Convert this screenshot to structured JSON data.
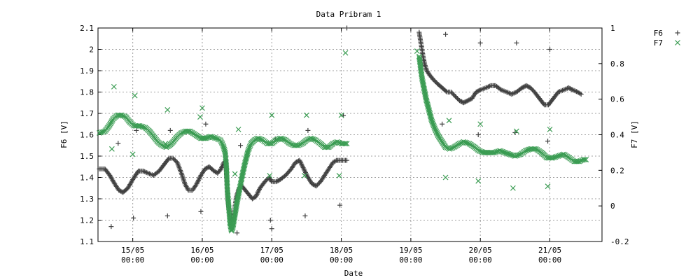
{
  "chart_data": {
    "type": "scatter",
    "title": "Data Pribram 1",
    "xlabel": "Date",
    "ylabel_left": "F6 [V]",
    "ylabel_right": "F7 [V]",
    "x_unit": "days",
    "xlim": [
      14.5,
      21.75
    ],
    "ylim_left": [
      1.1,
      2.1
    ],
    "ylim_right": [
      -0.2,
      1.0
    ],
    "grid": true,
    "legend_position": "top-right outside",
    "x_ticks": [
      {
        "x": 15,
        "line1": "15/05",
        "line2": "00:00"
      },
      {
        "x": 16,
        "line1": "16/05",
        "line2": "00:00"
      },
      {
        "x": 17,
        "line1": "17/05",
        "line2": "00:00"
      },
      {
        "x": 18,
        "line1": "18/05",
        "line2": "00:00"
      },
      {
        "x": 19,
        "line1": "19/05",
        "line2": "00:00"
      },
      {
        "x": 20,
        "line1": "20/05",
        "line2": "00:00"
      },
      {
        "x": 21,
        "line1": "21/05",
        "line2": "00:00"
      }
    ],
    "y_ticks_left": [
      "1.1",
      "1.2",
      "1.3",
      "1.4",
      "1.5",
      "1.6",
      "1.7",
      "1.8",
      "1.9",
      "2",
      "2.1"
    ],
    "y_ticks_right": [
      "-0.2",
      "0",
      "0.2",
      "0.4",
      "0.6",
      "0.8",
      "1"
    ],
    "series": [
      {
        "name": "F6",
        "axis": "left",
        "color": "#404040",
        "marker": "plus",
        "trace": [
          [
            14.52,
            1.44
          ],
          [
            14.6,
            1.44
          ],
          [
            14.67,
            1.41
          ],
          [
            14.74,
            1.37
          ],
          [
            14.8,
            1.34
          ],
          [
            14.86,
            1.33
          ],
          [
            14.93,
            1.35
          ],
          [
            15.0,
            1.39
          ],
          [
            15.08,
            1.43
          ],
          [
            15.15,
            1.43
          ],
          [
            15.22,
            1.42
          ],
          [
            15.3,
            1.41
          ],
          [
            15.38,
            1.43
          ],
          [
            15.45,
            1.46
          ],
          [
            15.52,
            1.49
          ],
          [
            15.58,
            1.49
          ],
          [
            15.64,
            1.47
          ],
          [
            15.7,
            1.42
          ],
          [
            15.75,
            1.37
          ],
          [
            15.8,
            1.34
          ],
          [
            15.86,
            1.34
          ],
          [
            15.92,
            1.37
          ],
          [
            15.98,
            1.41
          ],
          [
            16.04,
            1.44
          ],
          [
            16.1,
            1.45
          ],
          [
            16.17,
            1.43
          ],
          [
            16.22,
            1.42
          ],
          [
            16.27,
            1.44
          ],
          [
            16.31,
            1.47
          ],
          [
            16.34,
            1.48
          ],
          [
            16.35,
            1.4
          ],
          [
            16.36,
            1.32
          ],
          [
            16.38,
            1.26
          ],
          [
            16.4,
            1.21
          ],
          [
            16.42,
            1.18
          ],
          [
            16.44,
            1.2
          ],
          [
            16.46,
            1.24
          ],
          [
            16.49,
            1.31
          ],
          [
            16.53,
            1.35
          ],
          [
            16.57,
            1.36
          ],
          [
            16.62,
            1.34
          ],
          [
            16.67,
            1.32
          ],
          [
            16.72,
            1.3
          ],
          [
            16.77,
            1.31
          ],
          [
            16.83,
            1.35
          ],
          [
            16.9,
            1.38
          ],
          [
            16.96,
            1.4
          ],
          [
            17.0,
            1.38
          ],
          [
            17.06,
            1.38
          ],
          [
            17.12,
            1.39
          ],
          [
            17.2,
            1.41
          ],
          [
            17.28,
            1.44
          ],
          [
            17.34,
            1.47
          ],
          [
            17.4,
            1.48
          ],
          [
            17.46,
            1.44
          ],
          [
            17.52,
            1.4
          ],
          [
            17.58,
            1.37
          ],
          [
            17.64,
            1.36
          ],
          [
            17.7,
            1.38
          ],
          [
            17.76,
            1.41
          ],
          [
            17.82,
            1.44
          ],
          [
            17.88,
            1.47
          ],
          [
            17.93,
            1.48
          ],
          [
            18.0,
            1.48
          ],
          [
            18.08,
            1.48
          ],
          [
            19.12,
            2.08
          ],
          [
            19.14,
            2.04
          ],
          [
            19.16,
            2.0
          ],
          [
            19.18,
            1.96
          ],
          [
            19.2,
            1.93
          ],
          [
            19.23,
            1.9
          ],
          [
            19.27,
            1.88
          ],
          [
            19.32,
            1.86
          ],
          [
            19.38,
            1.84
          ],
          [
            19.45,
            1.82
          ],
          [
            19.52,
            1.8
          ],
          [
            19.58,
            1.8
          ],
          [
            19.64,
            1.78
          ],
          [
            19.7,
            1.76
          ],
          [
            19.76,
            1.75
          ],
          [
            19.82,
            1.76
          ],
          [
            19.88,
            1.77
          ],
          [
            19.94,
            1.8
          ],
          [
            20.0,
            1.81
          ],
          [
            20.08,
            1.82
          ],
          [
            20.15,
            1.83
          ],
          [
            20.22,
            1.83
          ],
          [
            20.3,
            1.81
          ],
          [
            20.38,
            1.8
          ],
          [
            20.45,
            1.79
          ],
          [
            20.52,
            1.8
          ],
          [
            20.6,
            1.82
          ],
          [
            20.66,
            1.83
          ],
          [
            20.72,
            1.82
          ],
          [
            20.78,
            1.8
          ],
          [
            20.85,
            1.77
          ],
          [
            20.92,
            1.74
          ],
          [
            20.98,
            1.74
          ],
          [
            21.05,
            1.77
          ],
          [
            21.12,
            1.8
          ],
          [
            21.2,
            1.81
          ],
          [
            21.27,
            1.82
          ],
          [
            21.33,
            1.81
          ],
          [
            21.4,
            1.8
          ],
          [
            21.45,
            1.79
          ]
        ],
        "outliers": [
          [
            14.69,
            1.17
          ],
          [
            14.79,
            1.56
          ],
          [
            15.01,
            1.21
          ],
          [
            15.05,
            1.62
          ],
          [
            15.5,
            1.22
          ],
          [
            15.54,
            1.62
          ],
          [
            15.98,
            1.24
          ],
          [
            16.05,
            1.65
          ],
          [
            16.5,
            1.14
          ],
          [
            16.55,
            1.55
          ],
          [
            16.98,
            1.2
          ],
          [
            17.0,
            1.16
          ],
          [
            17.05,
            1.58
          ],
          [
            17.48,
            1.22
          ],
          [
            17.52,
            1.62
          ],
          [
            17.98,
            1.27
          ],
          [
            18.03,
            1.69
          ],
          [
            18.08,
            2.1
          ],
          [
            19.45,
            1.65
          ],
          [
            19.5,
            2.07
          ],
          [
            19.97,
            1.6
          ],
          [
            20.0,
            2.03
          ],
          [
            20.5,
            1.61
          ],
          [
            20.52,
            2.03
          ],
          [
            20.97,
            1.57
          ],
          [
            21.0,
            2.0
          ]
        ]
      },
      {
        "name": "F7",
        "axis": "right",
        "color": "#3a9c52",
        "marker": "cross",
        "trace": [
          [
            14.52,
            0.41
          ],
          [
            14.6,
            0.42
          ],
          [
            14.66,
            0.45
          ],
          [
            14.72,
            0.49
          ],
          [
            14.78,
            0.51
          ],
          [
            14.84,
            0.51
          ],
          [
            14.9,
            0.5
          ],
          [
            14.96,
            0.47
          ],
          [
            15.02,
            0.45
          ],
          [
            15.1,
            0.45
          ],
          [
            15.18,
            0.44
          ],
          [
            15.24,
            0.42
          ],
          [
            15.3,
            0.39
          ],
          [
            15.36,
            0.36
          ],
          [
            15.42,
            0.34
          ],
          [
            15.48,
            0.33
          ],
          [
            15.53,
            0.34
          ],
          [
            15.58,
            0.36
          ],
          [
            15.64,
            0.39
          ],
          [
            15.7,
            0.41
          ],
          [
            15.76,
            0.42
          ],
          [
            15.82,
            0.42
          ],
          [
            15.9,
            0.4
          ],
          [
            15.98,
            0.38
          ],
          [
            16.05,
            0.38
          ],
          [
            16.12,
            0.39
          ],
          [
            16.2,
            0.38
          ],
          [
            16.26,
            0.37
          ],
          [
            16.3,
            0.34
          ],
          [
            16.33,
            0.3
          ],
          [
            16.35,
            0.2
          ],
          [
            16.36,
            0.1
          ],
          [
            16.38,
            0.0
          ],
          [
            16.4,
            -0.1
          ],
          [
            16.42,
            -0.14
          ],
          [
            16.44,
            -0.12
          ],
          [
            16.47,
            -0.05
          ],
          [
            16.5,
            0.02
          ],
          [
            16.54,
            0.1
          ],
          [
            16.58,
            0.18
          ],
          [
            16.62,
            0.25
          ],
          [
            16.66,
            0.31
          ],
          [
            16.7,
            0.35
          ],
          [
            16.75,
            0.37
          ],
          [
            16.8,
            0.38
          ],
          [
            16.87,
            0.37
          ],
          [
            16.94,
            0.35
          ],
          [
            17.0,
            0.35
          ],
          [
            17.06,
            0.37
          ],
          [
            17.13,
            0.38
          ],
          [
            17.2,
            0.37
          ],
          [
            17.26,
            0.35
          ],
          [
            17.32,
            0.34
          ],
          [
            17.38,
            0.34
          ],
          [
            17.44,
            0.35
          ],
          [
            17.5,
            0.37
          ],
          [
            17.56,
            0.38
          ],
          [
            17.63,
            0.37
          ],
          [
            17.7,
            0.35
          ],
          [
            17.76,
            0.33
          ],
          [
            17.82,
            0.33
          ],
          [
            17.88,
            0.35
          ],
          [
            17.94,
            0.36
          ],
          [
            18.0,
            0.35
          ],
          [
            18.08,
            0.35
          ],
          [
            19.12,
            0.84
          ],
          [
            19.14,
            0.78
          ],
          [
            19.16,
            0.72
          ],
          [
            19.19,
            0.66
          ],
          [
            19.22,
            0.6
          ],
          [
            19.26,
            0.54
          ],
          [
            19.3,
            0.48
          ],
          [
            19.35,
            0.43
          ],
          [
            19.4,
            0.39
          ],
          [
            19.45,
            0.36
          ],
          [
            19.5,
            0.33
          ],
          [
            19.56,
            0.32
          ],
          [
            19.62,
            0.33
          ],
          [
            19.7,
            0.35
          ],
          [
            19.76,
            0.36
          ],
          [
            19.84,
            0.35
          ],
          [
            19.92,
            0.33
          ],
          [
            19.98,
            0.31
          ],
          [
            20.05,
            0.3
          ],
          [
            20.12,
            0.3
          ],
          [
            20.2,
            0.3
          ],
          [
            20.28,
            0.31
          ],
          [
            20.35,
            0.3
          ],
          [
            20.42,
            0.29
          ],
          [
            20.5,
            0.28
          ],
          [
            20.58,
            0.29
          ],
          [
            20.65,
            0.31
          ],
          [
            20.72,
            0.32
          ],
          [
            20.8,
            0.32
          ],
          [
            20.88,
            0.3
          ],
          [
            20.96,
            0.27
          ],
          [
            21.04,
            0.27
          ],
          [
            21.12,
            0.28
          ],
          [
            21.2,
            0.29
          ],
          [
            21.28,
            0.27
          ],
          [
            21.35,
            0.25
          ],
          [
            21.42,
            0.25
          ],
          [
            21.48,
            0.26
          ],
          [
            21.52,
            0.26
          ]
        ],
        "outliers": [
          [
            14.7,
            0.32
          ],
          [
            14.73,
            0.67
          ],
          [
            15.0,
            0.29
          ],
          [
            15.03,
            0.62
          ],
          [
            15.47,
            0.35
          ],
          [
            15.5,
            0.54
          ],
          [
            15.97,
            0.5
          ],
          [
            16.0,
            0.55
          ],
          [
            16.47,
            0.18
          ],
          [
            16.52,
            0.43
          ],
          [
            16.97,
            0.17
          ],
          [
            17.0,
            0.51
          ],
          [
            17.47,
            0.17
          ],
          [
            17.5,
            0.51
          ],
          [
            17.97,
            0.17
          ],
          [
            18.0,
            0.51
          ],
          [
            18.06,
            0.86
          ],
          [
            19.09,
            0.87
          ],
          [
            19.5,
            0.16
          ],
          [
            19.55,
            0.48
          ],
          [
            19.97,
            0.14
          ],
          [
            20.0,
            0.46
          ],
          [
            20.47,
            0.1
          ],
          [
            20.52,
            0.42
          ],
          [
            20.97,
            0.11
          ],
          [
            21.0,
            0.43
          ]
        ]
      }
    ]
  }
}
